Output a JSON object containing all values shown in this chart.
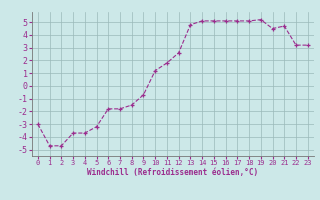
{
  "x": [
    0,
    1,
    2,
    3,
    4,
    5,
    6,
    7,
    8,
    9,
    10,
    11,
    12,
    13,
    14,
    15,
    16,
    17,
    18,
    19,
    20,
    21,
    22,
    23
  ],
  "y": [
    -3.0,
    -4.7,
    -4.7,
    -3.7,
    -3.7,
    -3.2,
    -1.8,
    -1.8,
    -1.5,
    -0.7,
    1.2,
    1.8,
    2.6,
    4.8,
    5.1,
    5.1,
    5.1,
    5.1,
    5.1,
    5.2,
    4.5,
    4.7,
    3.2,
    3.2
  ],
  "xlim": [
    -0.5,
    23.5
  ],
  "ylim": [
    -5.5,
    5.8
  ],
  "yticks": [
    -5,
    -4,
    -3,
    -2,
    -1,
    0,
    1,
    2,
    3,
    4,
    5
  ],
  "xticks": [
    0,
    1,
    2,
    3,
    4,
    5,
    6,
    7,
    8,
    9,
    10,
    11,
    12,
    13,
    14,
    15,
    16,
    17,
    18,
    19,
    20,
    21,
    22,
    23
  ],
  "xlabel": "Windchill (Refroidissement éolien,°C)",
  "line_color": "#9b2d8e",
  "marker": "+",
  "bg_color": "#cce8e8",
  "grid_color": "#9bbaba"
}
